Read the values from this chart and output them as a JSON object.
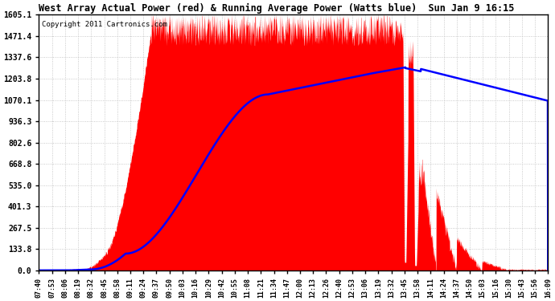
{
  "title": "West Array Actual Power (red) & Running Average Power (Watts blue)  Sun Jan 9 16:15",
  "copyright": "Copyright 2011 Cartronics.com",
  "yticks": [
    0.0,
    133.8,
    267.5,
    401.3,
    535.0,
    668.8,
    802.6,
    936.3,
    1070.1,
    1203.8,
    1337.6,
    1471.4,
    1605.1
  ],
  "ymax": 1605.1,
  "bg_color": "#ffffff",
  "grid_color": "#bbbbbb",
  "fill_color": "red",
  "line_color": "blue",
  "time_labels": [
    "07:40",
    "07:53",
    "08:06",
    "08:19",
    "08:32",
    "08:45",
    "08:58",
    "09:11",
    "09:24",
    "09:37",
    "09:50",
    "10:03",
    "10:16",
    "10:29",
    "10:42",
    "10:55",
    "11:08",
    "11:21",
    "11:34",
    "11:47",
    "12:00",
    "12:13",
    "12:26",
    "12:40",
    "12:53",
    "13:06",
    "13:19",
    "13:32",
    "13:45",
    "13:58",
    "14:11",
    "14:24",
    "14:37",
    "14:50",
    "15:03",
    "15:16",
    "15:30",
    "15:43",
    "15:56",
    "16:09"
  ]
}
